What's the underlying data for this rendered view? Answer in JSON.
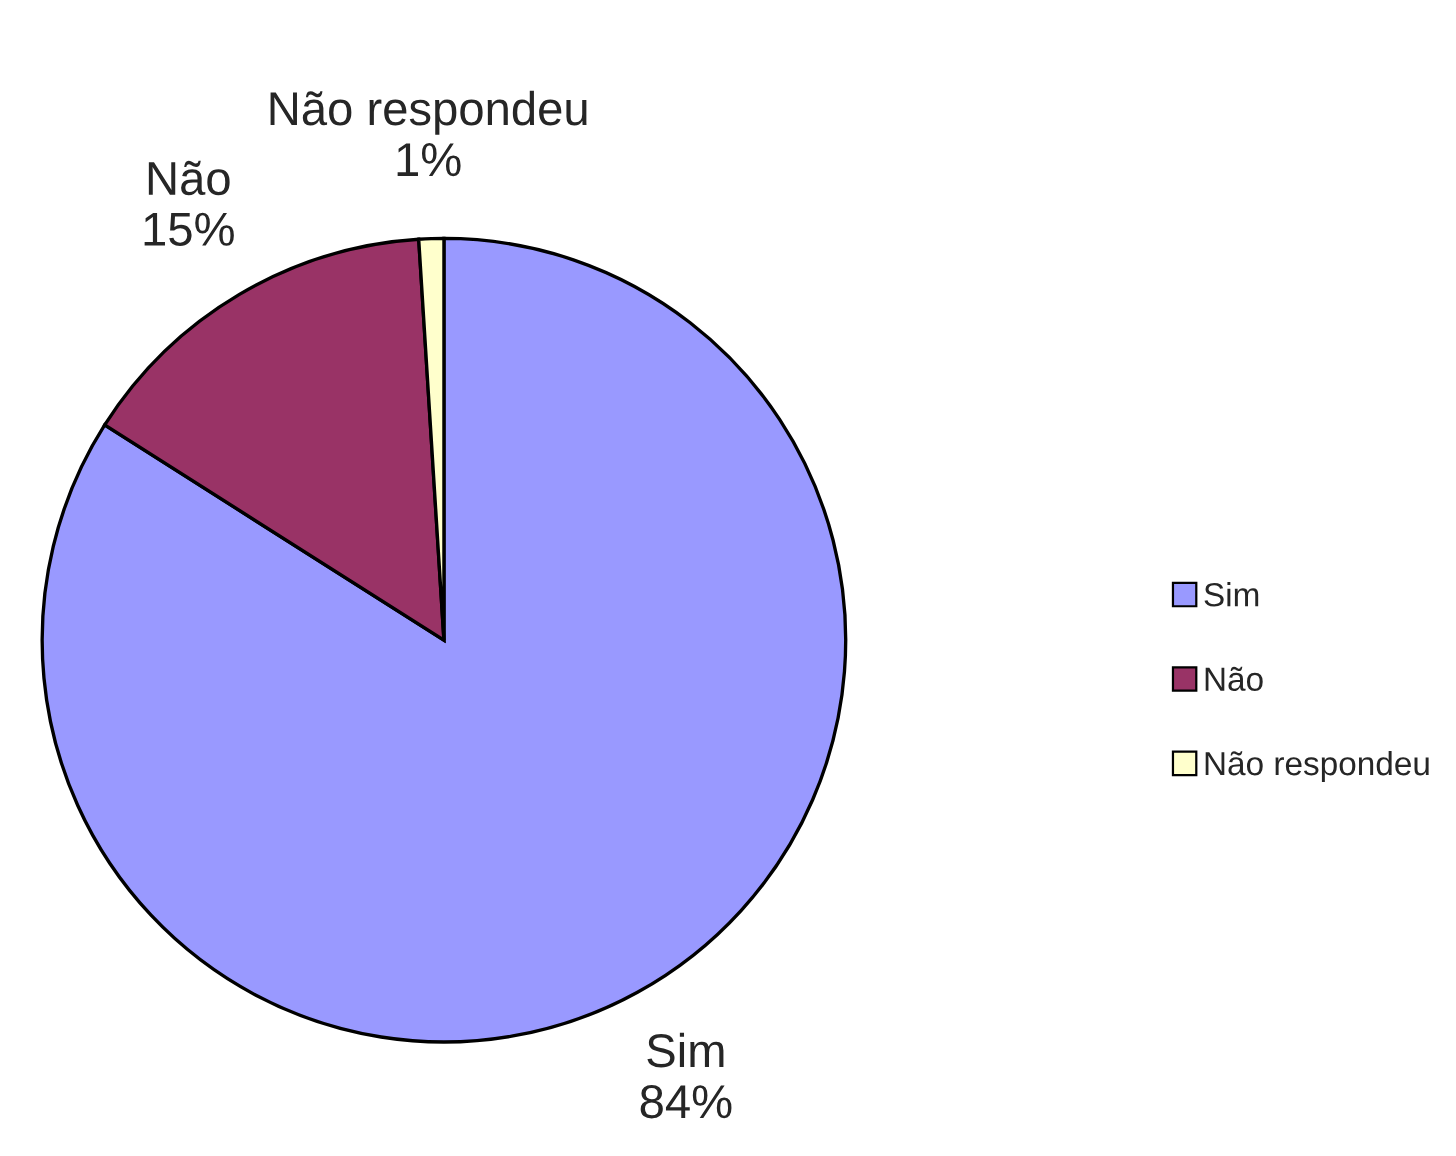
{
  "chart_data": {
    "type": "pie",
    "categories": [
      "Sim",
      "Não",
      "Não respondeu"
    ],
    "values": [
      84,
      15,
      1
    ],
    "value_labels": [
      "84%",
      "15%",
      "1%"
    ],
    "colors": [
      "#9999ff",
      "#993366",
      "#ffffcc"
    ],
    "legend": "right"
  }
}
